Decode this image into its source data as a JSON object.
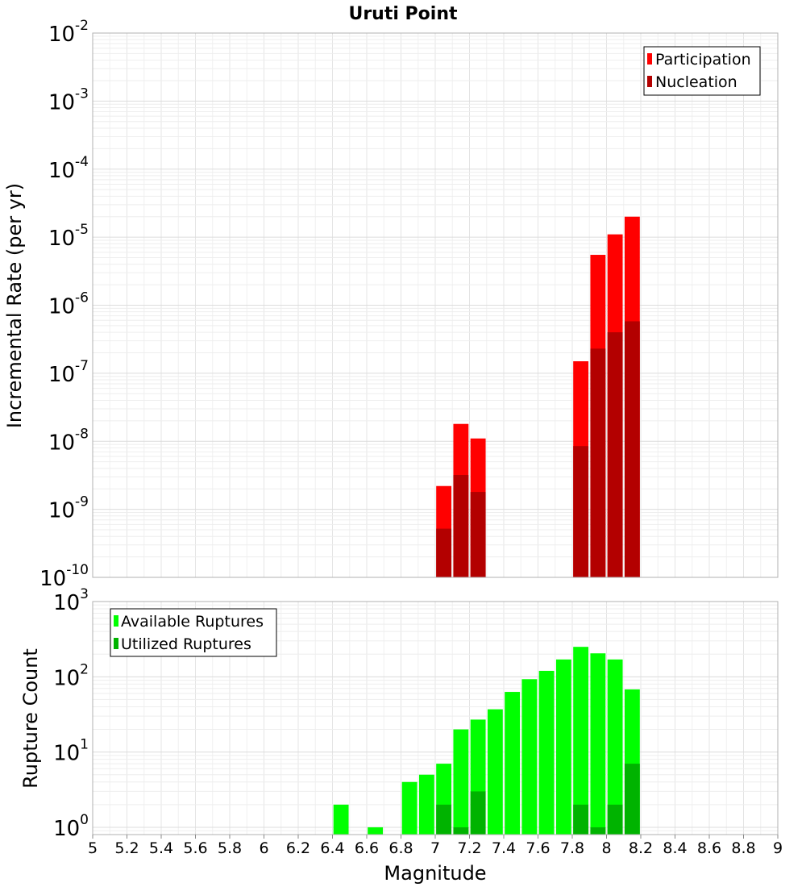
{
  "chart_data": [
    {
      "type": "bar",
      "title": "Uruti Point",
      "ylabel": "Incremental Rate (per yr)",
      "xlabel": "",
      "xlim": [
        5,
        9
      ],
      "ylim": [
        1e-10,
        0.01
      ],
      "yscale": "log",
      "grid": true,
      "legend_position": "top-right",
      "bin_width": 0.1,
      "y_tick_labels": [
        {
          "base": "10",
          "exp": "-10",
          "value": 1e-10
        },
        {
          "base": "10",
          "exp": "-9",
          "value": 1e-09
        },
        {
          "base": "10",
          "exp": "-8",
          "value": 1e-08
        },
        {
          "base": "10",
          "exp": "-7",
          "value": 1e-07
        },
        {
          "base": "10",
          "exp": "-6",
          "value": 1e-06
        },
        {
          "base": "10",
          "exp": "-5",
          "value": 1e-05
        },
        {
          "base": "10",
          "exp": "-4",
          "value": 0.0001
        },
        {
          "base": "10",
          "exp": "-3",
          "value": 0.001
        },
        {
          "base": "10",
          "exp": "-2",
          "value": 0.01
        }
      ],
      "series": [
        {
          "name": "Participation",
          "color": "#ff0000",
          "x": [
            7.05,
            7.15,
            7.25,
            7.85,
            7.95,
            8.05,
            8.15
          ],
          "values": [
            2.2e-09,
            1.8e-08,
            1.1e-08,
            1.5e-07,
            5.5e-06,
            1.1e-05,
            2e-05
          ]
        },
        {
          "name": "Nucleation",
          "color": "#b30000",
          "x": [
            7.05,
            7.15,
            7.25,
            7.85,
            7.95,
            8.05,
            8.15
          ],
          "values": [
            5.2e-10,
            3.2e-09,
            1.8e-09,
            8.5e-09,
            2.3e-07,
            4e-07,
            5.8e-07
          ]
        }
      ]
    },
    {
      "type": "bar",
      "title": "",
      "ylabel": "Rupture Count",
      "xlabel": "Magnitude",
      "xlim": [
        5,
        9
      ],
      "ylim": [
        0.8,
        1000
      ],
      "yscale": "log",
      "grid": true,
      "legend_position": "top-left",
      "bin_width": 0.1,
      "x_tick_labels": [
        "5",
        "5.2",
        "5.4",
        "5.6",
        "5.8",
        "6",
        "6.2",
        "6.4",
        "6.6",
        "6.8",
        "7",
        "7.2",
        "7.4",
        "7.6",
        "7.8",
        "8",
        "8.2",
        "8.4",
        "8.6",
        "8.8",
        "9"
      ],
      "y_tick_labels": [
        {
          "base": "10",
          "exp": "0",
          "value": 1
        },
        {
          "base": "10",
          "exp": "1",
          "value": 10
        },
        {
          "base": "10",
          "exp": "2",
          "value": 100
        },
        {
          "base": "10",
          "exp": "3",
          "value": 1000
        }
      ],
      "series": [
        {
          "name": "Available Ruptures",
          "color": "#00ff00",
          "x": [
            6.45,
            6.65,
            6.85,
            6.95,
            7.05,
            7.15,
            7.25,
            7.35,
            7.45,
            7.55,
            7.65,
            7.75,
            7.85,
            7.95,
            8.05,
            8.15
          ],
          "values": [
            2,
            1,
            4,
            5,
            7,
            20,
            27,
            37,
            63,
            93,
            120,
            170,
            250,
            205,
            170,
            68
          ]
        },
        {
          "name": "Utilized Ruptures",
          "color": "#00b300",
          "x": [
            7.05,
            7.15,
            7.25,
            7.85,
            7.95,
            8.05,
            8.15
          ],
          "values": [
            2,
            1,
            3,
            2,
            1,
            2,
            7
          ]
        }
      ]
    }
  ]
}
